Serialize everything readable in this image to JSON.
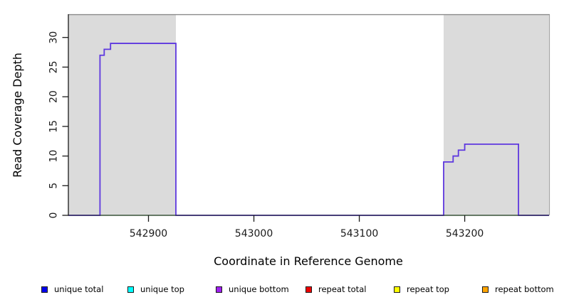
{
  "chart_data": {
    "type": "line",
    "subtype": "step-coverage",
    "title": "",
    "xlabel": "Coordinate in Reference Genome",
    "ylabel": "Read Coverage Depth",
    "xlim": [
      542824,
      543280
    ],
    "ylim": [
      0,
      33.8
    ],
    "x_ticks": [
      542900,
      543000,
      543100,
      543200
    ],
    "y_ticks": [
      0,
      5,
      10,
      15,
      20,
      25,
      30
    ],
    "grid": false,
    "legend_position": "bottom",
    "highlight_regions": [
      {
        "name": "left-masked-block",
        "x0": 542824,
        "x1": 542926,
        "color": "#dbdbdb"
      },
      {
        "name": "right-masked-block",
        "x0": 543180,
        "x1": 543280,
        "color": "#dbdbdb"
      }
    ],
    "series": [
      {
        "name": "overlapping zero-depth series",
        "color": "#77c377",
        "width": 1.4,
        "points": [
          [
            542824,
            0
          ],
          [
            543280,
            0
          ]
        ]
      },
      {
        "name": "unique bottom coverage",
        "color": "#5e38df",
        "width": 1.8,
        "points": [
          [
            542824,
            0
          ],
          [
            542854,
            27
          ],
          [
            542858,
            28
          ],
          [
            542864,
            29
          ],
          [
            542926,
            0
          ],
          [
            543180,
            9
          ],
          [
            543189,
            10
          ],
          [
            543194,
            11
          ],
          [
            543200,
            12
          ],
          [
            543251,
            0
          ],
          [
            543280,
            0
          ]
        ]
      }
    ]
  },
  "legend": {
    "items": [
      {
        "label": "unique total",
        "color": "#0000ee"
      },
      {
        "label": "unique top",
        "color": "#00ffff"
      },
      {
        "label": "unique bottom",
        "color": "#a020f0"
      },
      {
        "label": "repeat total",
        "color": "#ee0000"
      },
      {
        "label": "repeat top",
        "color": "#ffff00"
      },
      {
        "label": "repeat bottom",
        "color": "#ffa500"
      }
    ]
  },
  "colors": {
    "masked_region": "#dbdbdb",
    "plot_top_border": "#8a8a8a",
    "axis": "#1a1a1a",
    "coverage_line": "#5e38df",
    "zero_line": "#77c377"
  }
}
